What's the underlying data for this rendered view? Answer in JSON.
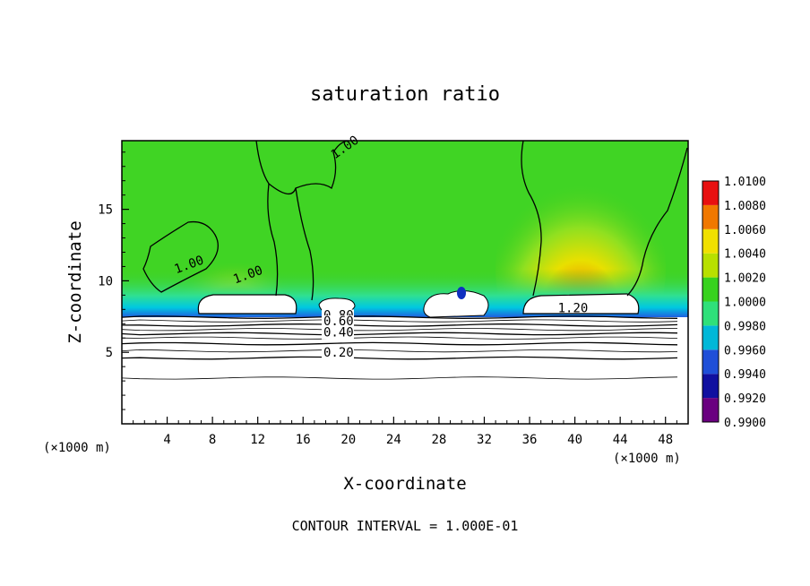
{
  "chart_data": {
    "type": "heatmap",
    "title": "saturation ratio",
    "xlabel": "X-coordinate",
    "ylabel": "Z-coordinate",
    "x_unit_label": "(×1000 m)",
    "y_unit_label": "(×1000 m)",
    "xlim": [
      0,
      50
    ],
    "ylim": [
      0,
      19.8
    ],
    "x_ticks": [
      4,
      8,
      12,
      16,
      20,
      24,
      28,
      32,
      36,
      40,
      44,
      48
    ],
    "y_ticks": [
      5,
      10,
      15
    ],
    "footnote": "CONTOUR INTERVAL = 1.000E-01",
    "colorbar": {
      "levels": [
        "0.9900",
        "0.9920",
        "0.9940",
        "0.9960",
        "0.9980",
        "1.0000",
        "1.0020",
        "1.0040",
        "1.0060",
        "1.0080",
        "1.0100"
      ],
      "colors": [
        "#6a0080",
        "#1010a0",
        "#1f4fd8",
        "#00b8d8",
        "#2fe07a",
        "#38d21e",
        "#b8e000",
        "#f0e000",
        "#f07800",
        "#e81010",
        "#f09090"
      ]
    },
    "contour_labels": [
      {
        "text": "1.00",
        "x": 18.8,
        "z": 18.5
      },
      {
        "text": "1.00",
        "x": 4.8,
        "z": 10.5
      },
      {
        "text": "1.00",
        "x": 10.0,
        "z": 9.8
      },
      {
        "text": "1.20",
        "x": 38.5,
        "z": 7.8
      },
      {
        "text": "0.80",
        "x": 17.8,
        "z": 7.3
      },
      {
        "text": "0.60",
        "x": 17.8,
        "z": 6.9
      },
      {
        "text": "0.40",
        "x": 17.8,
        "z": 6.1
      },
      {
        "text": "0.20",
        "x": 17.8,
        "z": 4.7
      }
    ],
    "contour_lines_z": [
      7.45,
      7.2,
      6.9,
      6.6,
      6.3,
      6.0,
      5.6,
      5.1,
      4.6,
      3.2
    ]
  }
}
